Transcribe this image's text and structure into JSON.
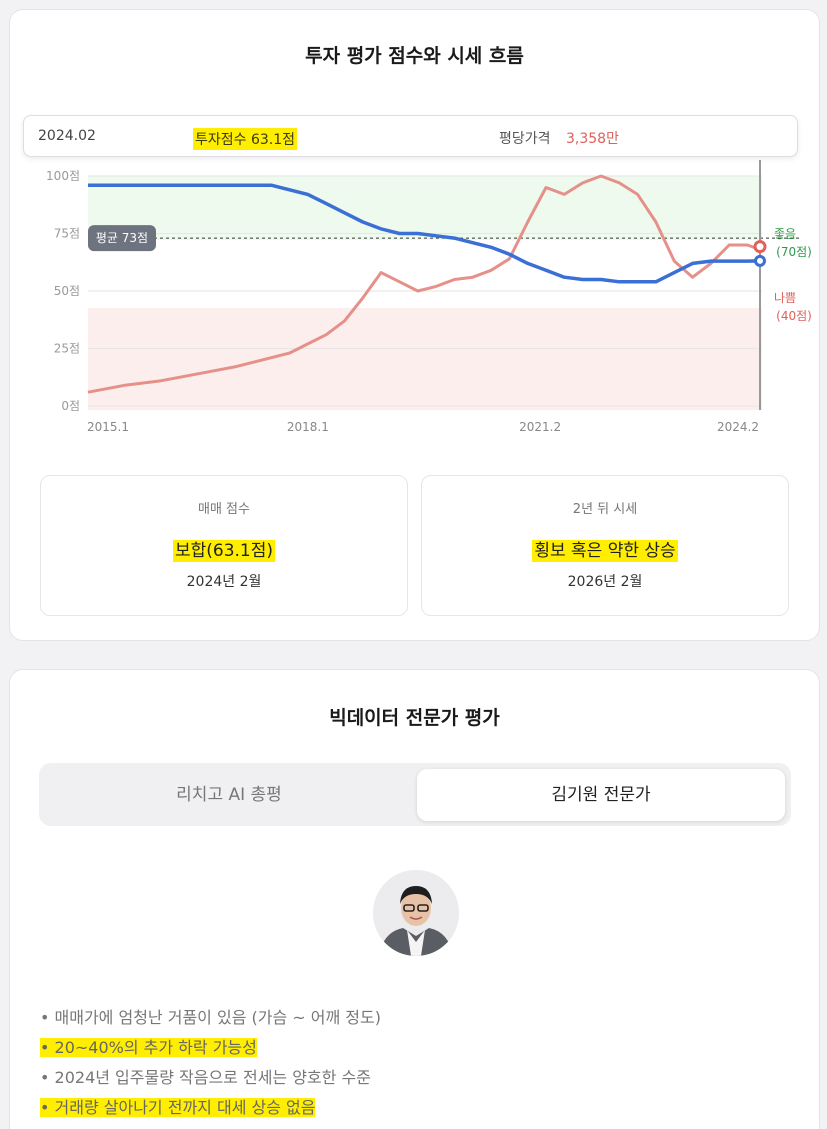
{
  "section1": {
    "title": "투자 평가 점수와 시세 흐름",
    "tooltip": {
      "date": "2024.02",
      "score": "투자점수 63.1점",
      "price_label": "평당가격",
      "price_value": "3,358만"
    },
    "avg_label": "평균 73점",
    "good_label": "좋음",
    "good_value": "(70점)",
    "bad_label": "나쁨",
    "bad_value": "(40점)",
    "boxes": [
      {
        "label": "매매 점수",
        "value": "보합(63.1점)",
        "date": "2024년 2월"
      },
      {
        "label": "2년 뒤 시세",
        "value": "횡보 혹은 약한 상승",
        "date": "2026년 2월"
      }
    ]
  },
  "chart_data": {
    "type": "line",
    "x_ticks": [
      "2015.1",
      "2018.1",
      "2021.2",
      "2024.2"
    ],
    "y_ticks": [
      "100점",
      "75점",
      "50점",
      "25점",
      "0점"
    ],
    "ylim": [
      0,
      100
    ],
    "x": [
      2015.0,
      2015.5,
      2016.0,
      2016.5,
      2017.0,
      2017.25,
      2017.5,
      2017.75,
      2018.0,
      2018.25,
      2018.5,
      2018.75,
      2019.0,
      2019.25,
      2019.5,
      2019.75,
      2020.0,
      2020.25,
      2020.5,
      2020.75,
      2021.0,
      2021.25,
      2021.5,
      2021.75,
      2022.0,
      2022.25,
      2022.5,
      2022.75,
      2023.0,
      2023.25,
      2023.5,
      2023.75,
      2024.0,
      2024.17
    ],
    "series": [
      {
        "name": "투자점수",
        "color": "#3a6fd6",
        "values": [
          96,
          96,
          96,
          96,
          96,
          96,
          96,
          94,
          92,
          88,
          84,
          80,
          77,
          75,
          75,
          74,
          73,
          71,
          69,
          66,
          62,
          59,
          56,
          55,
          55,
          54,
          54,
          54,
          58,
          62,
          63,
          63,
          63,
          63.1
        ]
      },
      {
        "name": "평당가격",
        "color": "#e59088",
        "values": [
          6,
          9,
          11,
          14,
          17,
          19,
          21,
          23,
          27,
          31,
          37,
          47,
          58,
          54,
          50,
          52,
          55,
          56,
          59,
          64,
          80,
          95,
          92,
          97,
          100,
          97,
          92,
          80,
          63,
          56,
          62,
          70,
          70,
          68
        ]
      }
    ],
    "reference_lines": {
      "average": 73,
      "good": 70,
      "bad": 40
    }
  },
  "section2": {
    "title": "빅데이터 전문가 평가",
    "tabs": [
      "리치고 AI 총평",
      "김기원 전문가"
    ],
    "bullets": [
      {
        "text": "• 매매가에 엄청난 거품이 있음 (가슴 ~ 어깨 정도)",
        "highlight": false
      },
      {
        "text": "• 20~40%의 추가 하락 가능성",
        "highlight": true
      },
      {
        "text": "• 2024년 입주물량 작음으로 전세는 양호한 수준",
        "highlight": false
      },
      {
        "text": "• 거래량 살아나기 전까지 대세 상승 없음",
        "highlight": true
      }
    ]
  }
}
